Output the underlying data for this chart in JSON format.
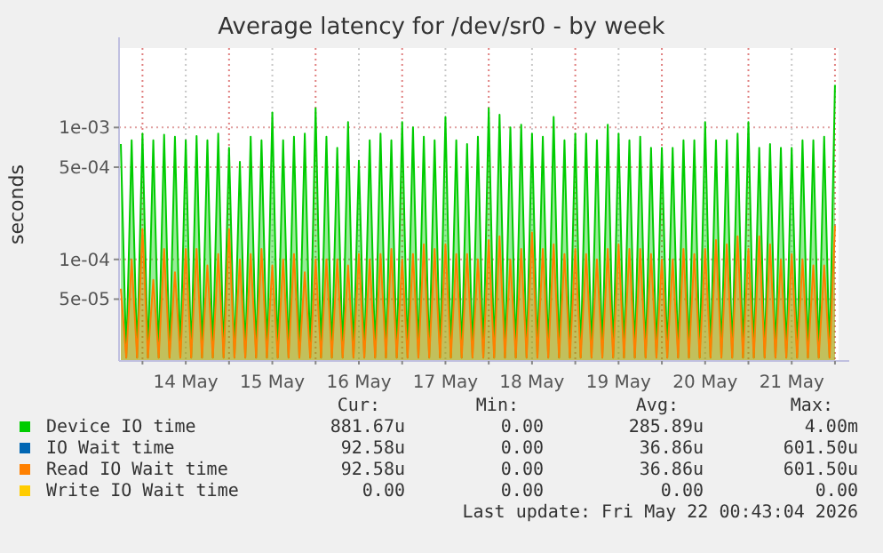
{
  "chart_data": {
    "type": "area",
    "title": "Average latency for /dev/sr0 - by week",
    "ylabel": "seconds",
    "log": "y",
    "grid": true,
    "legend": "bottom",
    "xlim": [
      "2026-05-13T17:30",
      "2026-05-22T01:00"
    ],
    "xticks": [
      {
        "value": "2026-05-14T00:00",
        "label": null
      },
      {
        "value": "2026-05-14T12:00",
        "label": "14 May"
      },
      {
        "value": "2026-05-15T00:00",
        "label": null
      },
      {
        "value": "2026-05-15T12:00",
        "label": "15 May"
      },
      {
        "value": "2026-05-16T00:00",
        "label": null
      },
      {
        "value": "2026-05-16T12:00",
        "label": "16 May"
      },
      {
        "value": "2026-05-17T00:00",
        "label": null
      },
      {
        "value": "2026-05-17T12:00",
        "label": "17 May"
      },
      {
        "value": "2026-05-18T00:00",
        "label": null
      },
      {
        "value": "2026-05-18T12:00",
        "label": "18 May"
      },
      {
        "value": "2026-05-19T00:00",
        "label": null
      },
      {
        "value": "2026-05-19T12:00",
        "label": "19 May"
      },
      {
        "value": "2026-05-20T00:00",
        "label": null
      },
      {
        "value": "2026-05-20T12:00",
        "label": "20 May"
      },
      {
        "value": "2026-05-21T00:00",
        "label": null
      },
      {
        "value": "2026-05-21T12:00",
        "label": "21 May"
      },
      {
        "value": "2026-05-22T00:00",
        "label": null
      }
    ],
    "ylim": [
      1.7e-05,
      0.004
    ],
    "yticks": [
      {
        "value": 5e-05,
        "label": "5e-05"
      },
      {
        "value": 0.0001,
        "label": "1e-04"
      },
      {
        "value": 0.0005,
        "label": "5e-04"
      },
      {
        "value": 0.001,
        "label": "1e-03"
      }
    ],
    "x": [
      "2026-05-13T18:00",
      "2026-05-13T19:30",
      "2026-05-13T21:00",
      "2026-05-13T22:30",
      "2026-05-14T00:00",
      "2026-05-14T01:30",
      "2026-05-14T03:00",
      "2026-05-14T04:30",
      "2026-05-14T06:00",
      "2026-05-14T07:30",
      "2026-05-14T09:00",
      "2026-05-14T10:30",
      "2026-05-14T12:00",
      "2026-05-14T13:30",
      "2026-05-14T15:00",
      "2026-05-14T16:30",
      "2026-05-14T18:00",
      "2026-05-14T19:30",
      "2026-05-14T21:00",
      "2026-05-14T22:30",
      "2026-05-15T00:00",
      "2026-05-15T01:30",
      "2026-05-15T03:00",
      "2026-05-15T04:30",
      "2026-05-15T06:00",
      "2026-05-15T07:30",
      "2026-05-15T09:00",
      "2026-05-15T10:30",
      "2026-05-15T12:00",
      "2026-05-15T13:30",
      "2026-05-15T15:00",
      "2026-05-15T16:30",
      "2026-05-15T18:00",
      "2026-05-15T19:30",
      "2026-05-15T21:00",
      "2026-05-15T22:30",
      "2026-05-16T00:00",
      "2026-05-16T01:30",
      "2026-05-16T03:00",
      "2026-05-16T04:30",
      "2026-05-16T06:00",
      "2026-05-16T07:30",
      "2026-05-16T09:00",
      "2026-05-16T10:30",
      "2026-05-16T12:00",
      "2026-05-16T13:30",
      "2026-05-16T15:00",
      "2026-05-16T16:30",
      "2026-05-16T18:00",
      "2026-05-16T19:30",
      "2026-05-16T21:00",
      "2026-05-16T22:30",
      "2026-05-17T00:00",
      "2026-05-17T01:30",
      "2026-05-17T03:00",
      "2026-05-17T04:30",
      "2026-05-17T06:00",
      "2026-05-17T07:30",
      "2026-05-17T09:00",
      "2026-05-17T10:30",
      "2026-05-17T12:00",
      "2026-05-17T13:30",
      "2026-05-17T15:00",
      "2026-05-17T16:30",
      "2026-05-17T18:00",
      "2026-05-17T19:30",
      "2026-05-17T21:00",
      "2026-05-17T22:30",
      "2026-05-18T00:00",
      "2026-05-18T01:30",
      "2026-05-18T03:00",
      "2026-05-18T04:30",
      "2026-05-18T06:00",
      "2026-05-18T07:30",
      "2026-05-18T09:00",
      "2026-05-18T10:30",
      "2026-05-18T12:00",
      "2026-05-18T13:30",
      "2026-05-18T15:00",
      "2026-05-18T16:30",
      "2026-05-18T18:00",
      "2026-05-18T19:30",
      "2026-05-18T21:00",
      "2026-05-18T22:30",
      "2026-05-19T00:00",
      "2026-05-19T01:30",
      "2026-05-19T03:00",
      "2026-05-19T04:30",
      "2026-05-19T06:00",
      "2026-05-19T07:30",
      "2026-05-19T09:00",
      "2026-05-19T10:30",
      "2026-05-19T12:00",
      "2026-05-19T13:30",
      "2026-05-19T15:00",
      "2026-05-19T16:30",
      "2026-05-19T18:00",
      "2026-05-19T19:30",
      "2026-05-19T21:00",
      "2026-05-19T22:30",
      "2026-05-20T00:00",
      "2026-05-20T01:30",
      "2026-05-20T03:00",
      "2026-05-20T04:30",
      "2026-05-20T06:00",
      "2026-05-20T07:30",
      "2026-05-20T09:00",
      "2026-05-20T10:30",
      "2026-05-20T12:00",
      "2026-05-20T13:30",
      "2026-05-20T15:00",
      "2026-05-20T16:30",
      "2026-05-20T18:00",
      "2026-05-20T19:30",
      "2026-05-20T21:00",
      "2026-05-20T22:30",
      "2026-05-21T00:00",
      "2026-05-21T01:30",
      "2026-05-21T03:00",
      "2026-05-21T04:30",
      "2026-05-21T06:00",
      "2026-05-21T07:30",
      "2026-05-21T09:00",
      "2026-05-21T10:30",
      "2026-05-21T12:00",
      "2026-05-21T13:30",
      "2026-05-21T15:00",
      "2026-05-21T16:30",
      "2026-05-21T18:00",
      "2026-05-21T19:30",
      "2026-05-21T21:00",
      "2026-05-21T22:30",
      "2026-05-22T00:00"
    ],
    "series": [
      {
        "name": "Device IO time",
        "color": "#00cc00",
        "values": [
          0.00075,
          1.8e-05,
          0.0008,
          1.8e-05,
          0.0009,
          1.8e-05,
          0.0008,
          1.8e-05,
          0.00088,
          1.8e-05,
          0.00085,
          1.8e-05,
          0.0008,
          1.8e-05,
          0.00086,
          1.8e-05,
          0.0008,
          1.8e-05,
          0.0009,
          1.8e-05,
          0.0007,
          1.8e-05,
          0.00055,
          1.8e-05,
          0.00085,
          1.8e-05,
          0.0008,
          1.8e-05,
          0.0013,
          1.8e-05,
          0.0008,
          1.8e-05,
          0.00085,
          1.8e-05,
          0.0009,
          1.8e-05,
          0.0014,
          1.8e-05,
          0.00085,
          1.8e-05,
          0.0007,
          1.8e-05,
          0.0011,
          1.8e-05,
          0.00056,
          1.8e-05,
          0.0008,
          1.8e-05,
          0.0009,
          1.8e-05,
          0.0008,
          1.8e-05,
          0.0011,
          1.8e-05,
          0.001,
          1.8e-05,
          0.00085,
          1.8e-05,
          0.0008,
          1.8e-05,
          0.0012,
          1.8e-05,
          0.0008,
          1.8e-05,
          0.00075,
          1.8e-05,
          0.00085,
          1.8e-05,
          0.0014,
          1.8e-05,
          0.00125,
          1.8e-05,
          0.001,
          1.8e-05,
          0.00105,
          1.8e-05,
          0.0009,
          1.8e-05,
          0.00085,
          1.8e-05,
          0.0012,
          1.8e-05,
          0.0008,
          1.8e-05,
          0.0009,
          1.8e-05,
          0.0009,
          1.8e-05,
          0.0008,
          1.8e-05,
          0.00105,
          1.8e-05,
          0.0009,
          1.8e-05,
          0.0008,
          1.8e-05,
          0.00085,
          1.8e-05,
          0.0007,
          1.8e-05,
          0.0007,
          1.8e-05,
          0.0007,
          1.8e-05,
          0.0008,
          1.8e-05,
          0.0008,
          1.8e-05,
          0.0011,
          1.8e-05,
          0.0008,
          1.8e-05,
          0.0008,
          1.8e-05,
          0.0009,
          1.8e-05,
          0.0011,
          1.8e-05,
          0.0007,
          1.8e-05,
          0.00075,
          1.8e-05,
          0.0007,
          1.8e-05,
          0.0007,
          1.8e-05,
          0.0008,
          1.8e-05,
          0.0008,
          1.8e-05,
          0.00085,
          1.8e-05,
          0.0021
        ]
      },
      {
        "name": "IO Wait time",
        "color": "#0066b3",
        "values": [
          null,
          null,
          null,
          null,
          null,
          null,
          null,
          null,
          null,
          null,
          null,
          null,
          null,
          null,
          null,
          null,
          null,
          null,
          null,
          null,
          null,
          null,
          null,
          null,
          null,
          null,
          null,
          null,
          null,
          null,
          null,
          null,
          null,
          null,
          null,
          null,
          null,
          null,
          null,
          null,
          null,
          null,
          null,
          null,
          null,
          null,
          null,
          null,
          null,
          null,
          null,
          null,
          null,
          null,
          null,
          null,
          null,
          null,
          null,
          null,
          null,
          null,
          null,
          null,
          null,
          null,
          null,
          null,
          null,
          null,
          null,
          null,
          null,
          null,
          null,
          null,
          null,
          null,
          null,
          null,
          null,
          null,
          null,
          null,
          null,
          null,
          null,
          null,
          null,
          null,
          null,
          null,
          null,
          null,
          null,
          null,
          null,
          null,
          null,
          null,
          null,
          null,
          null,
          null,
          null,
          null,
          null,
          null,
          null,
          null,
          null,
          null,
          null,
          null,
          null,
          null,
          null,
          null,
          null,
          null,
          null,
          null,
          null,
          null,
          null,
          null,
          null,
          null,
          null,
          null,
          null,
          null,
          null
        ]
      },
      {
        "name": "Read IO Wait time",
        "color": "#ff8000",
        "values": [
          6e-05,
          1.8e-05,
          0.0001,
          1.8e-05,
          0.00017,
          1.8e-05,
          7e-05,
          1.8e-05,
          0.00012,
          1.8e-05,
          8e-05,
          1.8e-05,
          0.00012,
          1.8e-05,
          0.00012,
          1.8e-05,
          9e-05,
          1.8e-05,
          0.00011,
          1.8e-05,
          0.00017,
          1.8e-05,
          0.0001,
          1.8e-05,
          0.00011,
          1.8e-05,
          0.00012,
          1.8e-05,
          9e-05,
          1.8e-05,
          0.0001,
          1.8e-05,
          0.00011,
          1.8e-05,
          8e-05,
          1.8e-05,
          0.0001,
          1.8e-05,
          0.0001,
          1.8e-05,
          0.0001,
          1.8e-05,
          9e-05,
          1.8e-05,
          0.00011,
          1.8e-05,
          0.0001,
          1.8e-05,
          0.00011,
          1.8e-05,
          0.00012,
          1.8e-05,
          0.0001,
          1.8e-05,
          0.00011,
          1.8e-05,
          0.00013,
          1.8e-05,
          0.00012,
          1.8e-05,
          0.00013,
          1.8e-05,
          0.00011,
          1.8e-05,
          0.00011,
          1.8e-05,
          0.0001,
          1.8e-05,
          0.00014,
          1.8e-05,
          0.00015,
          1.8e-05,
          0.0001,
          1.8e-05,
          0.00012,
          1.8e-05,
          0.00016,
          1.8e-05,
          0.00012,
          1.8e-05,
          0.00013,
          1.8e-05,
          0.00011,
          1.8e-05,
          0.00012,
          1.8e-05,
          0.00011,
          1.8e-05,
          0.0001,
          1.8e-05,
          0.00012,
          1.8e-05,
          0.00013,
          1.8e-05,
          0.00012,
          1.8e-05,
          0.00012,
          1.8e-05,
          0.00011,
          1.8e-05,
          0.0001,
          1.8e-05,
          0.0001,
          1.8e-05,
          0.00012,
          1.8e-05,
          0.00011,
          1.8e-05,
          0.00012,
          1.8e-05,
          0.00014,
          1.8e-05,
          0.00013,
          1.8e-05,
          0.00015,
          1.8e-05,
          0.00012,
          1.8e-05,
          0.00015,
          1.8e-05,
          0.00013,
          1.8e-05,
          0.0001,
          1.8e-05,
          0.00011,
          1.8e-05,
          0.0001,
          1.8e-05,
          9e-05,
          1.8e-05,
          9e-05,
          1.8e-05,
          0.00018
        ]
      },
      {
        "name": "Write IO Wait time",
        "color": "#ffcc00",
        "values": [
          null,
          null,
          null,
          null,
          null,
          null,
          null,
          null,
          null,
          null,
          null,
          null,
          null,
          null,
          null,
          null,
          null,
          null,
          null,
          null,
          null,
          null,
          null,
          null,
          null,
          null,
          null,
          null,
          null,
          null,
          null,
          null,
          null,
          null,
          null,
          null,
          null,
          null,
          null,
          null,
          null,
          null,
          null,
          null,
          null,
          null,
          null,
          null,
          null,
          null,
          null,
          null,
          null,
          null,
          null,
          null,
          null,
          null,
          null,
          null,
          null,
          null,
          null,
          null,
          null,
          null,
          null,
          null,
          null,
          null,
          null,
          null,
          null,
          null,
          null,
          null,
          null,
          null,
          null,
          null,
          null,
          null,
          null,
          null,
          null,
          null,
          null,
          null,
          null,
          null,
          null,
          null,
          null,
          null,
          null,
          null,
          null,
          null,
          null,
          null,
          null,
          null,
          null,
          null,
          null,
          null,
          null,
          null,
          null,
          null,
          null,
          null,
          null,
          null,
          null,
          null,
          null,
          null,
          null,
          null,
          null,
          null,
          null,
          null,
          null,
          null,
          null,
          null,
          null,
          null,
          null,
          null,
          null
        ]
      }
    ],
    "annotations": [
      "Cur:",
      "Min:",
      "Avg:",
      "Max:",
      "881.67u",
      "0.00",
      "285.89u",
      "4.00m",
      "92.58u",
      "0.00",
      "36.86u",
      "601.50u",
      "92.58u",
      "0.00",
      "36.86u",
      "601.50u",
      "0.00",
      "0.00",
      "0.00",
      "0.00",
      "Last update: Fri May 22 00:43:04 2026"
    ]
  }
}
